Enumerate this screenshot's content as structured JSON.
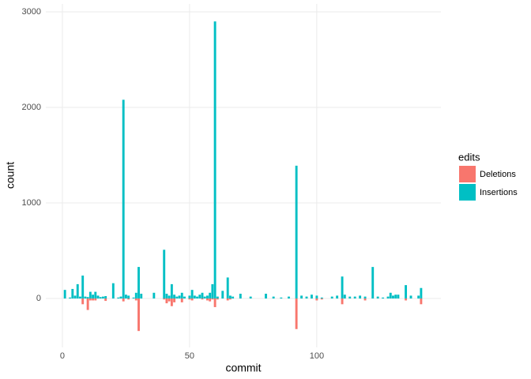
{
  "chart_data": {
    "type": "bar",
    "x_label": "commit",
    "y_label": "count",
    "legend_title": "edits",
    "x": [
      1,
      3,
      4,
      5,
      6,
      7,
      8,
      9,
      10,
      11,
      12,
      13,
      14,
      15,
      16,
      17,
      20,
      22,
      23,
      24,
      25,
      26,
      28,
      29,
      30,
      31,
      36,
      40,
      41,
      42,
      43,
      44,
      45,
      46,
      47,
      48,
      50,
      51,
      52,
      53,
      54,
      55,
      56,
      57,
      58,
      59,
      60,
      61,
      63,
      65,
      66,
      67,
      70,
      74,
      80,
      83,
      86,
      89,
      92,
      94,
      96,
      98,
      100,
      102,
      106,
      108,
      110,
      111,
      113,
      115,
      117,
      119,
      122,
      124,
      126,
      128,
      129,
      130,
      131,
      132,
      135,
      137,
      140,
      141
    ],
    "series": [
      {
        "name": "Deletions",
        "color": "#F8766D",
        "values": [
          0,
          0,
          0,
          0,
          0,
          0,
          -60,
          0,
          -120,
          -20,
          -20,
          -20,
          0,
          0,
          0,
          -25,
          0,
          0,
          0,
          -30,
          0,
          -10,
          0,
          -20,
          -340,
          0,
          0,
          -10,
          -50,
          -30,
          -80,
          -40,
          0,
          0,
          -40,
          0,
          -10,
          -20,
          0,
          0,
          0,
          -10,
          0,
          -20,
          -30,
          -10,
          -90,
          -10,
          0,
          -20,
          -10,
          0,
          0,
          0,
          0,
          0,
          0,
          0,
          -320,
          0,
          0,
          0,
          -20,
          -10,
          0,
          0,
          -60,
          0,
          0,
          0,
          0,
          -20,
          0,
          0,
          0,
          0,
          0,
          0,
          0,
          0,
          -20,
          0,
          0,
          -60
        ]
      },
      {
        "name": "Insertions",
        "color": "#00BFC4",
        "values": [
          90,
          10,
          100,
          30,
          150,
          20,
          240,
          20,
          15,
          70,
          40,
          70,
          30,
          15,
          20,
          25,
          160,
          10,
          20,
          2080,
          40,
          30,
          10,
          60,
          330,
          50,
          60,
          510,
          50,
          30,
          150,
          40,
          20,
          30,
          60,
          20,
          30,
          90,
          30,
          20,
          40,
          60,
          20,
          30,
          60,
          150,
          2900,
          20,
          80,
          220,
          30,
          20,
          50,
          20,
          50,
          20,
          10,
          20,
          1390,
          30,
          20,
          40,
          30,
          10,
          20,
          30,
          230,
          40,
          20,
          20,
          30,
          20,
          330,
          20,
          10,
          20,
          60,
          30,
          40,
          40,
          140,
          30,
          30,
          110
        ]
      }
    ],
    "xlim": [
      -6.5,
      148.8
    ],
    "xticks": [
      0,
      50,
      100
    ],
    "ylim": [
      -512,
      3083
    ],
    "yticks": [
      0,
      1000,
      2000,
      3000
    ],
    "grid": true,
    "legend": "right"
  }
}
